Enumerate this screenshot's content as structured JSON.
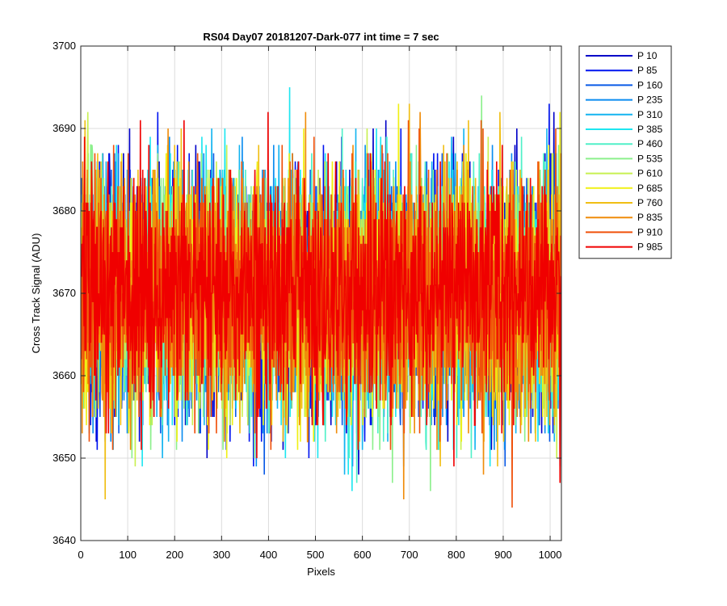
{
  "chart_data": {
    "type": "line",
    "title": "RS04 Day07 20181207-Dark-077 int time = 7 sec",
    "xlabel": "Pixels",
    "ylabel": "Cross Track Signal (ADU)",
    "xlim": [
      0,
      1024
    ],
    "ylim": [
      3640,
      3700
    ],
    "x_ticks": [
      0,
      100,
      200,
      300,
      400,
      500,
      600,
      700,
      800,
      900,
      1000
    ],
    "y_ticks": [
      3640,
      3650,
      3660,
      3670,
      3680,
      3690,
      3700
    ],
    "grid": true,
    "legend_position": "outside-top-right",
    "x": {
      "start": 1,
      "end": 1024,
      "step": 1
    },
    "series": [
      {
        "name": "P 10",
        "color": "#0000c8",
        "mean": 3670,
        "spread": 7.2,
        "seed": 11
      },
      {
        "name": "P 85",
        "color": "#0014f0",
        "mean": 3670,
        "spread": 7.2,
        "seed": 23
      },
      {
        "name": "P 160",
        "color": "#0a5ae6",
        "mean": 3670,
        "spread": 7.2,
        "seed": 37
      },
      {
        "name": "P 235",
        "color": "#0a8cf0",
        "mean": 3670,
        "spread": 7.2,
        "seed": 41
      },
      {
        "name": "P 310",
        "color": "#14b4f0",
        "mean": 3670,
        "spread": 7.2,
        "seed": 53
      },
      {
        "name": "P 385",
        "color": "#1ee6f0",
        "mean": 3670,
        "spread": 7.2,
        "seed": 67
      },
      {
        "name": "P 460",
        "color": "#50f0c8",
        "mean": 3670,
        "spread": 7.2,
        "seed": 71
      },
      {
        "name": "P 535",
        "color": "#8cf08c",
        "mean": 3670,
        "spread": 7.2,
        "seed": 83
      },
      {
        "name": "P 610",
        "color": "#c8f050",
        "mean": 3670,
        "spread": 7.2,
        "seed": 97
      },
      {
        "name": "P 685",
        "color": "#f0f014",
        "mean": 3670,
        "spread": 7.2,
        "seed": 101
      },
      {
        "name": "P 760",
        "color": "#f0be14",
        "mean": 3670,
        "spread": 7.2,
        "seed": 113
      },
      {
        "name": "P 835",
        "color": "#f08c0a",
        "mean": 3670,
        "spread": 7.2,
        "seed": 127
      },
      {
        "name": "P 910",
        "color": "#f0500a",
        "mean": 3670,
        "spread": 7.2,
        "seed": 131
      },
      {
        "name": "P 985",
        "color": "#f00000",
        "mean": 3670,
        "spread": 7.2,
        "seed": 149
      }
    ]
  }
}
